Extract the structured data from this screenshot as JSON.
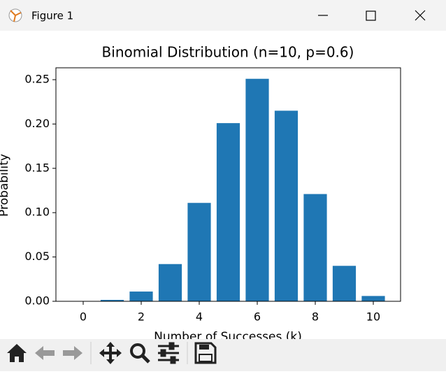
{
  "window": {
    "title": "Figure 1"
  },
  "chart_data": {
    "type": "bar",
    "title": "Binomial Distribution (n=10, p=0.6)",
    "x_label": "Number of Successes (k)",
    "y_label": "Probability",
    "x": [
      0,
      1,
      2,
      3,
      4,
      5,
      6,
      7,
      8,
      9,
      10
    ],
    "values": [
      0.0001,
      0.0016,
      0.011,
      0.042,
      0.111,
      0.201,
      0.251,
      0.215,
      0.121,
      0.04,
      0.006
    ],
    "bar_width": 0.8,
    "color": "#1f77b4",
    "xlim": [
      -0.94,
      10.94
    ],
    "xticks": [
      0,
      2,
      4,
      6,
      8,
      10
    ],
    "ylim": [
      0,
      0.2634
    ],
    "yticks": [
      {
        "value": 0,
        "label": "0.00"
      },
      {
        "value": 0.05,
        "label": "0.05"
      },
      {
        "value": 0.1,
        "label": "0.10"
      },
      {
        "value": 0.15,
        "label": "0.15"
      },
      {
        "value": 0.2,
        "label": "0.20"
      },
      {
        "value": 0.25,
        "label": "0.25"
      }
    ],
    "grid": false
  }
}
